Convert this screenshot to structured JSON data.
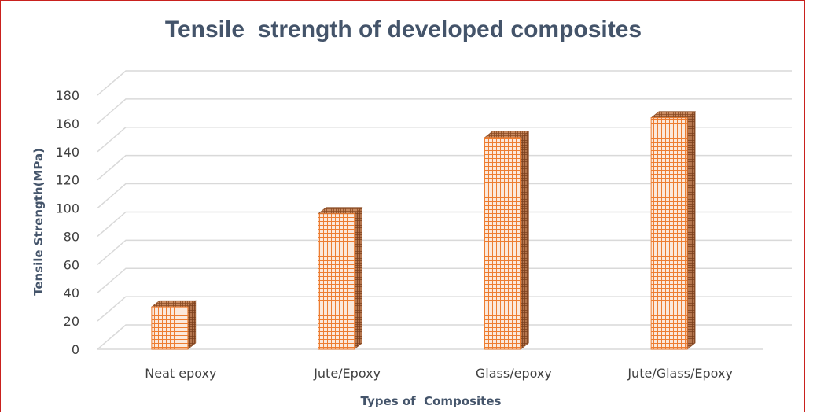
{
  "chart_data": {
    "type": "bar",
    "style": "3d-column",
    "title": "Tensile  strength of developed composites",
    "xlabel": "Types of  Composites",
    "ylabel": "Tensile Strength(MPa)",
    "categories": [
      "Neat epoxy",
      "Jute/Epoxy",
      "Glass/epoxy",
      "Jute/Glass/Epoxy"
    ],
    "values": [
      30,
      96,
      150,
      164
    ],
    "ylim": [
      0,
      180
    ],
    "yticks": [
      0,
      20,
      40,
      60,
      80,
      100,
      120,
      140,
      160,
      180
    ],
    "grid": true,
    "legend": "none",
    "colors": {
      "bar_front_pattern": "#ed7d31",
      "bar_front_bg": "#fbe5d6",
      "bar_side": "#a0522d",
      "grid": "#d9d9d9",
      "title": "#44546a",
      "border": "#c9211e"
    }
  }
}
